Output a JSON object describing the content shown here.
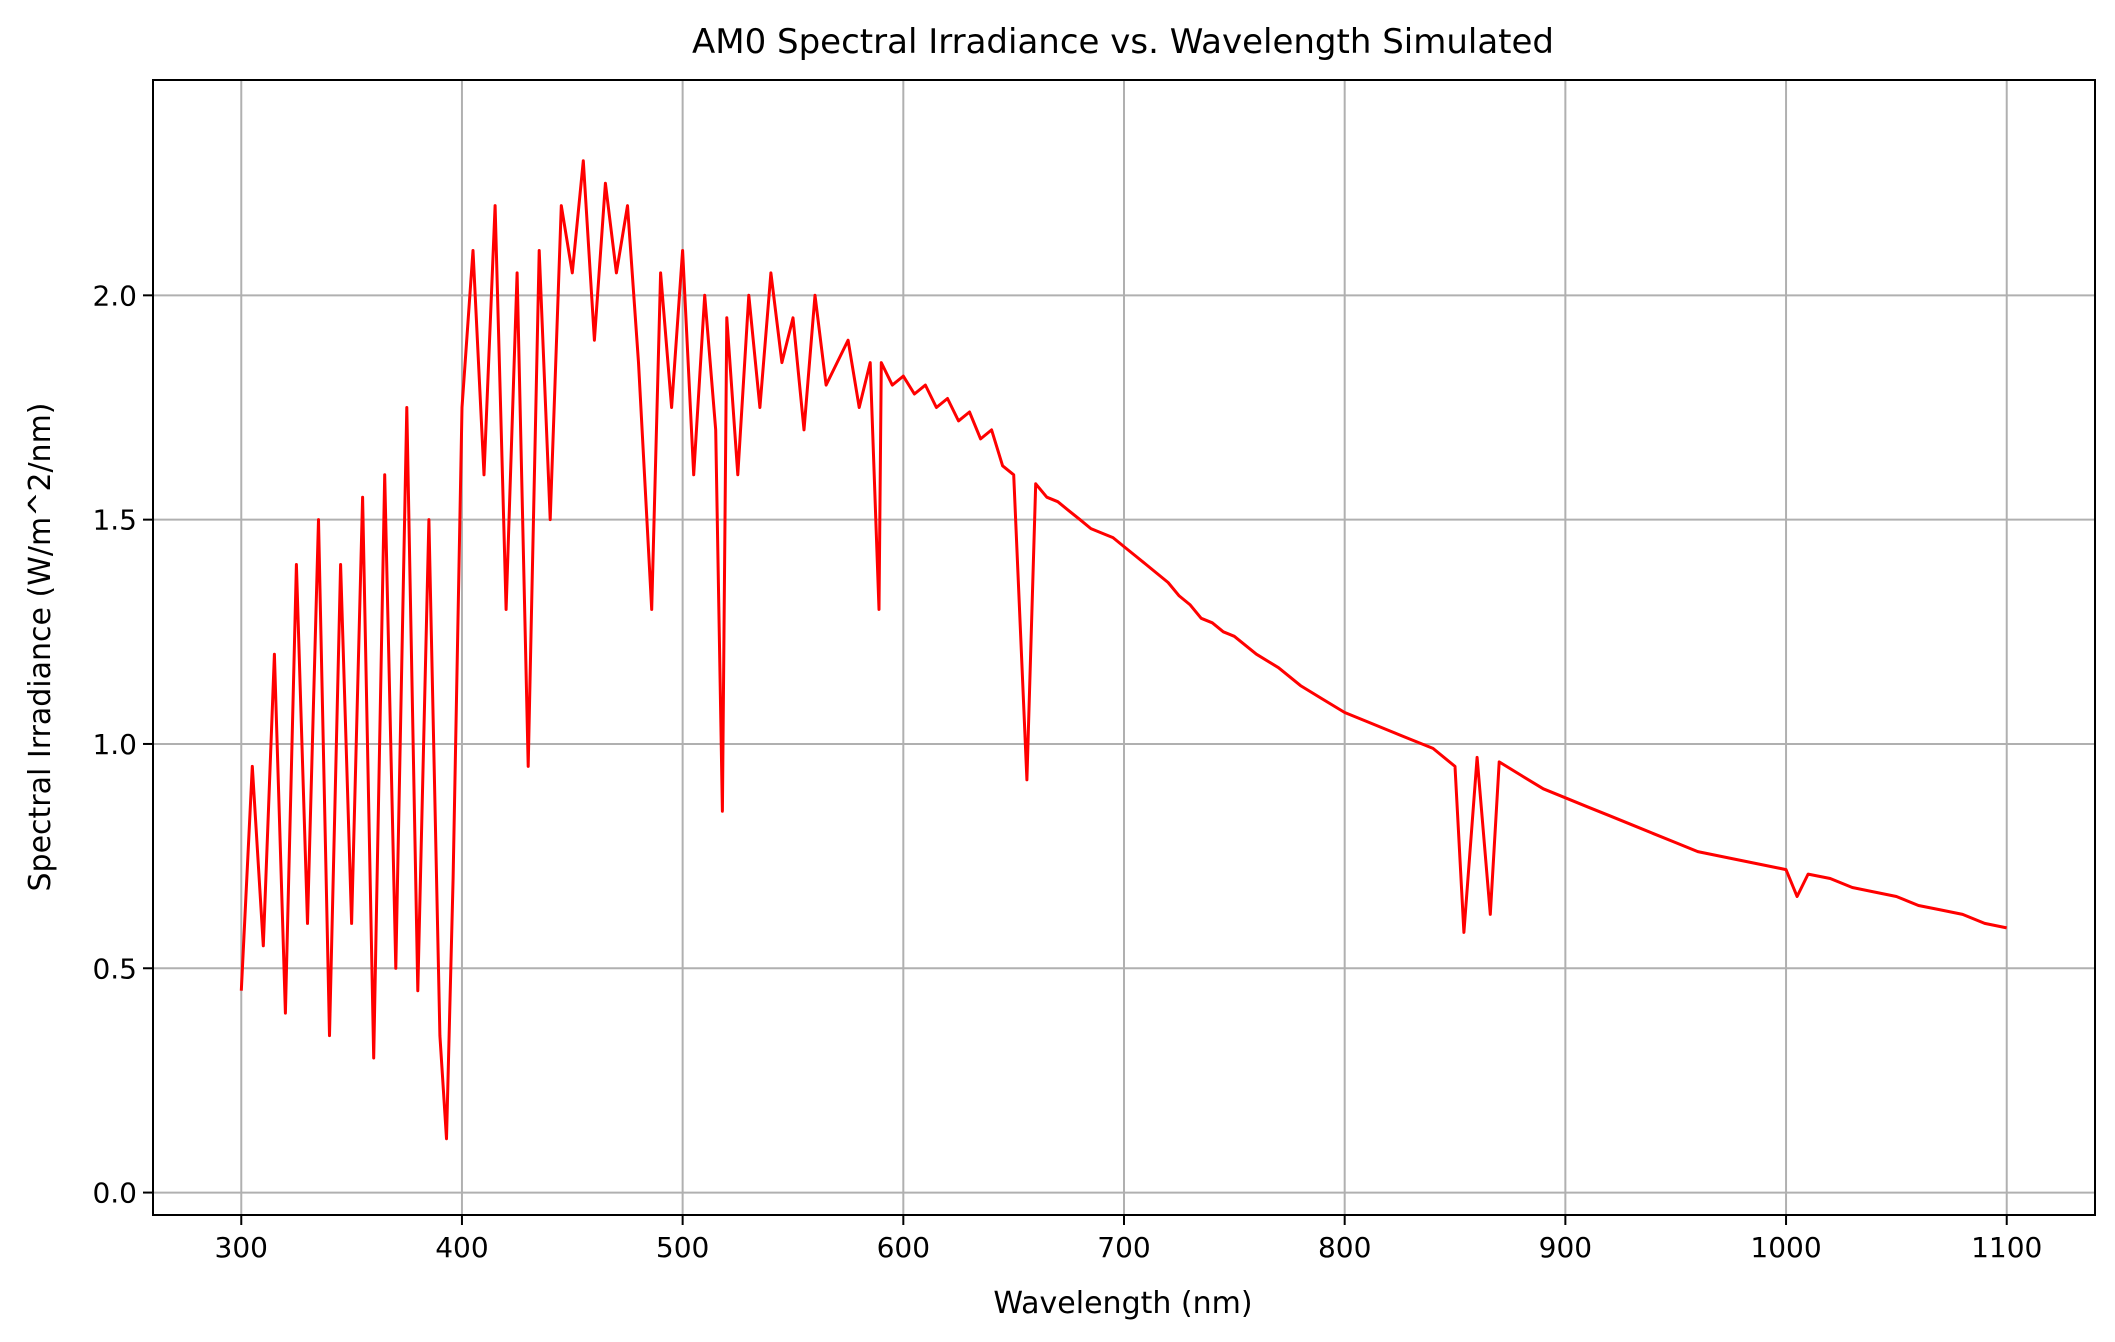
{
  "chart_data": {
    "type": "line",
    "title": "AM0 Spectral Irradiance vs. Wavelength Simulated",
    "xlabel": "Wavelength (nm)",
    "ylabel": "Spectral Irradiance (W/m^2/nm)",
    "xlim": [
      260,
      1140
    ],
    "ylim": [
      -0.05,
      2.48
    ],
    "x_ticks": [
      300,
      400,
      500,
      600,
      700,
      800,
      900,
      1000,
      1100
    ],
    "x_tick_labels": [
      "300",
      "400",
      "500",
      "600",
      "700",
      "800",
      "900",
      "1000",
      "1100"
    ],
    "y_ticks": [
      0.0,
      0.5,
      1.0,
      1.5,
      2.0
    ],
    "y_tick_labels": [
      "0.0",
      "0.5",
      "1.0",
      "1.5",
      "2.0"
    ],
    "grid": true,
    "series": [
      {
        "color": "#ff0000",
        "x": [
          300,
          305,
          310,
          315,
          320,
          325,
          330,
          335,
          340,
          345,
          350,
          355,
          360,
          365,
          370,
          375,
          380,
          385,
          390,
          393,
          396,
          400,
          405,
          410,
          415,
          420,
          425,
          430,
          435,
          440,
          445,
          450,
          455,
          460,
          465,
          470,
          475,
          480,
          486,
          490,
          495,
          500,
          505,
          510,
          515,
          518,
          520,
          525,
          530,
          535,
          540,
          545,
          550,
          555,
          560,
          565,
          570,
          575,
          580,
          585,
          589,
          590,
          595,
          600,
          605,
          610,
          615,
          620,
          625,
          630,
          635,
          640,
          645,
          650,
          656,
          660,
          665,
          670,
          675,
          680,
          685,
          690,
          695,
          700,
          705,
          710,
          715,
          720,
          725,
          730,
          735,
          740,
          745,
          750,
          760,
          770,
          780,
          790,
          800,
          810,
          820,
          830,
          840,
          850,
          854,
          860,
          866,
          870,
          880,
          890,
          900,
          910,
          920,
          930,
          940,
          950,
          960,
          970,
          980,
          990,
          1000,
          1005,
          1010,
          1020,
          1030,
          1040,
          1050,
          1060,
          1070,
          1080,
          1090,
          1100
        ],
        "y": [
          0.45,
          0.95,
          0.55,
          1.2,
          0.4,
          1.4,
          0.6,
          1.5,
          0.35,
          1.4,
          0.6,
          1.55,
          0.3,
          1.6,
          0.5,
          1.75,
          0.45,
          1.5,
          0.35,
          0.12,
          0.7,
          1.75,
          2.1,
          1.6,
          2.2,
          1.3,
          2.05,
          0.95,
          2.1,
          1.5,
          2.2,
          2.05,
          2.3,
          1.9,
          2.25,
          2.05,
          2.2,
          1.85,
          1.3,
          2.05,
          1.75,
          2.1,
          1.6,
          2.0,
          1.7,
          0.85,
          1.95,
          1.6,
          2.0,
          1.75,
          2.05,
          1.85,
          1.95,
          1.7,
          2.0,
          1.8,
          1.85,
          1.9,
          1.75,
          1.85,
          1.3,
          1.85,
          1.8,
          1.82,
          1.78,
          1.8,
          1.75,
          1.77,
          1.72,
          1.74,
          1.68,
          1.7,
          1.62,
          1.6,
          0.92,
          1.58,
          1.55,
          1.54,
          1.52,
          1.5,
          1.48,
          1.47,
          1.46,
          1.44,
          1.42,
          1.4,
          1.38,
          1.36,
          1.33,
          1.31,
          1.28,
          1.27,
          1.25,
          1.24,
          1.2,
          1.17,
          1.13,
          1.1,
          1.07,
          1.05,
          1.03,
          1.01,
          0.99,
          0.95,
          0.58,
          0.97,
          0.62,
          0.96,
          0.93,
          0.9,
          0.88,
          0.86,
          0.84,
          0.82,
          0.8,
          0.78,
          0.76,
          0.75,
          0.74,
          0.73,
          0.72,
          0.66,
          0.71,
          0.7,
          0.68,
          0.67,
          0.66,
          0.64,
          0.63,
          0.62,
          0.6,
          0.59
        ]
      }
    ]
  }
}
